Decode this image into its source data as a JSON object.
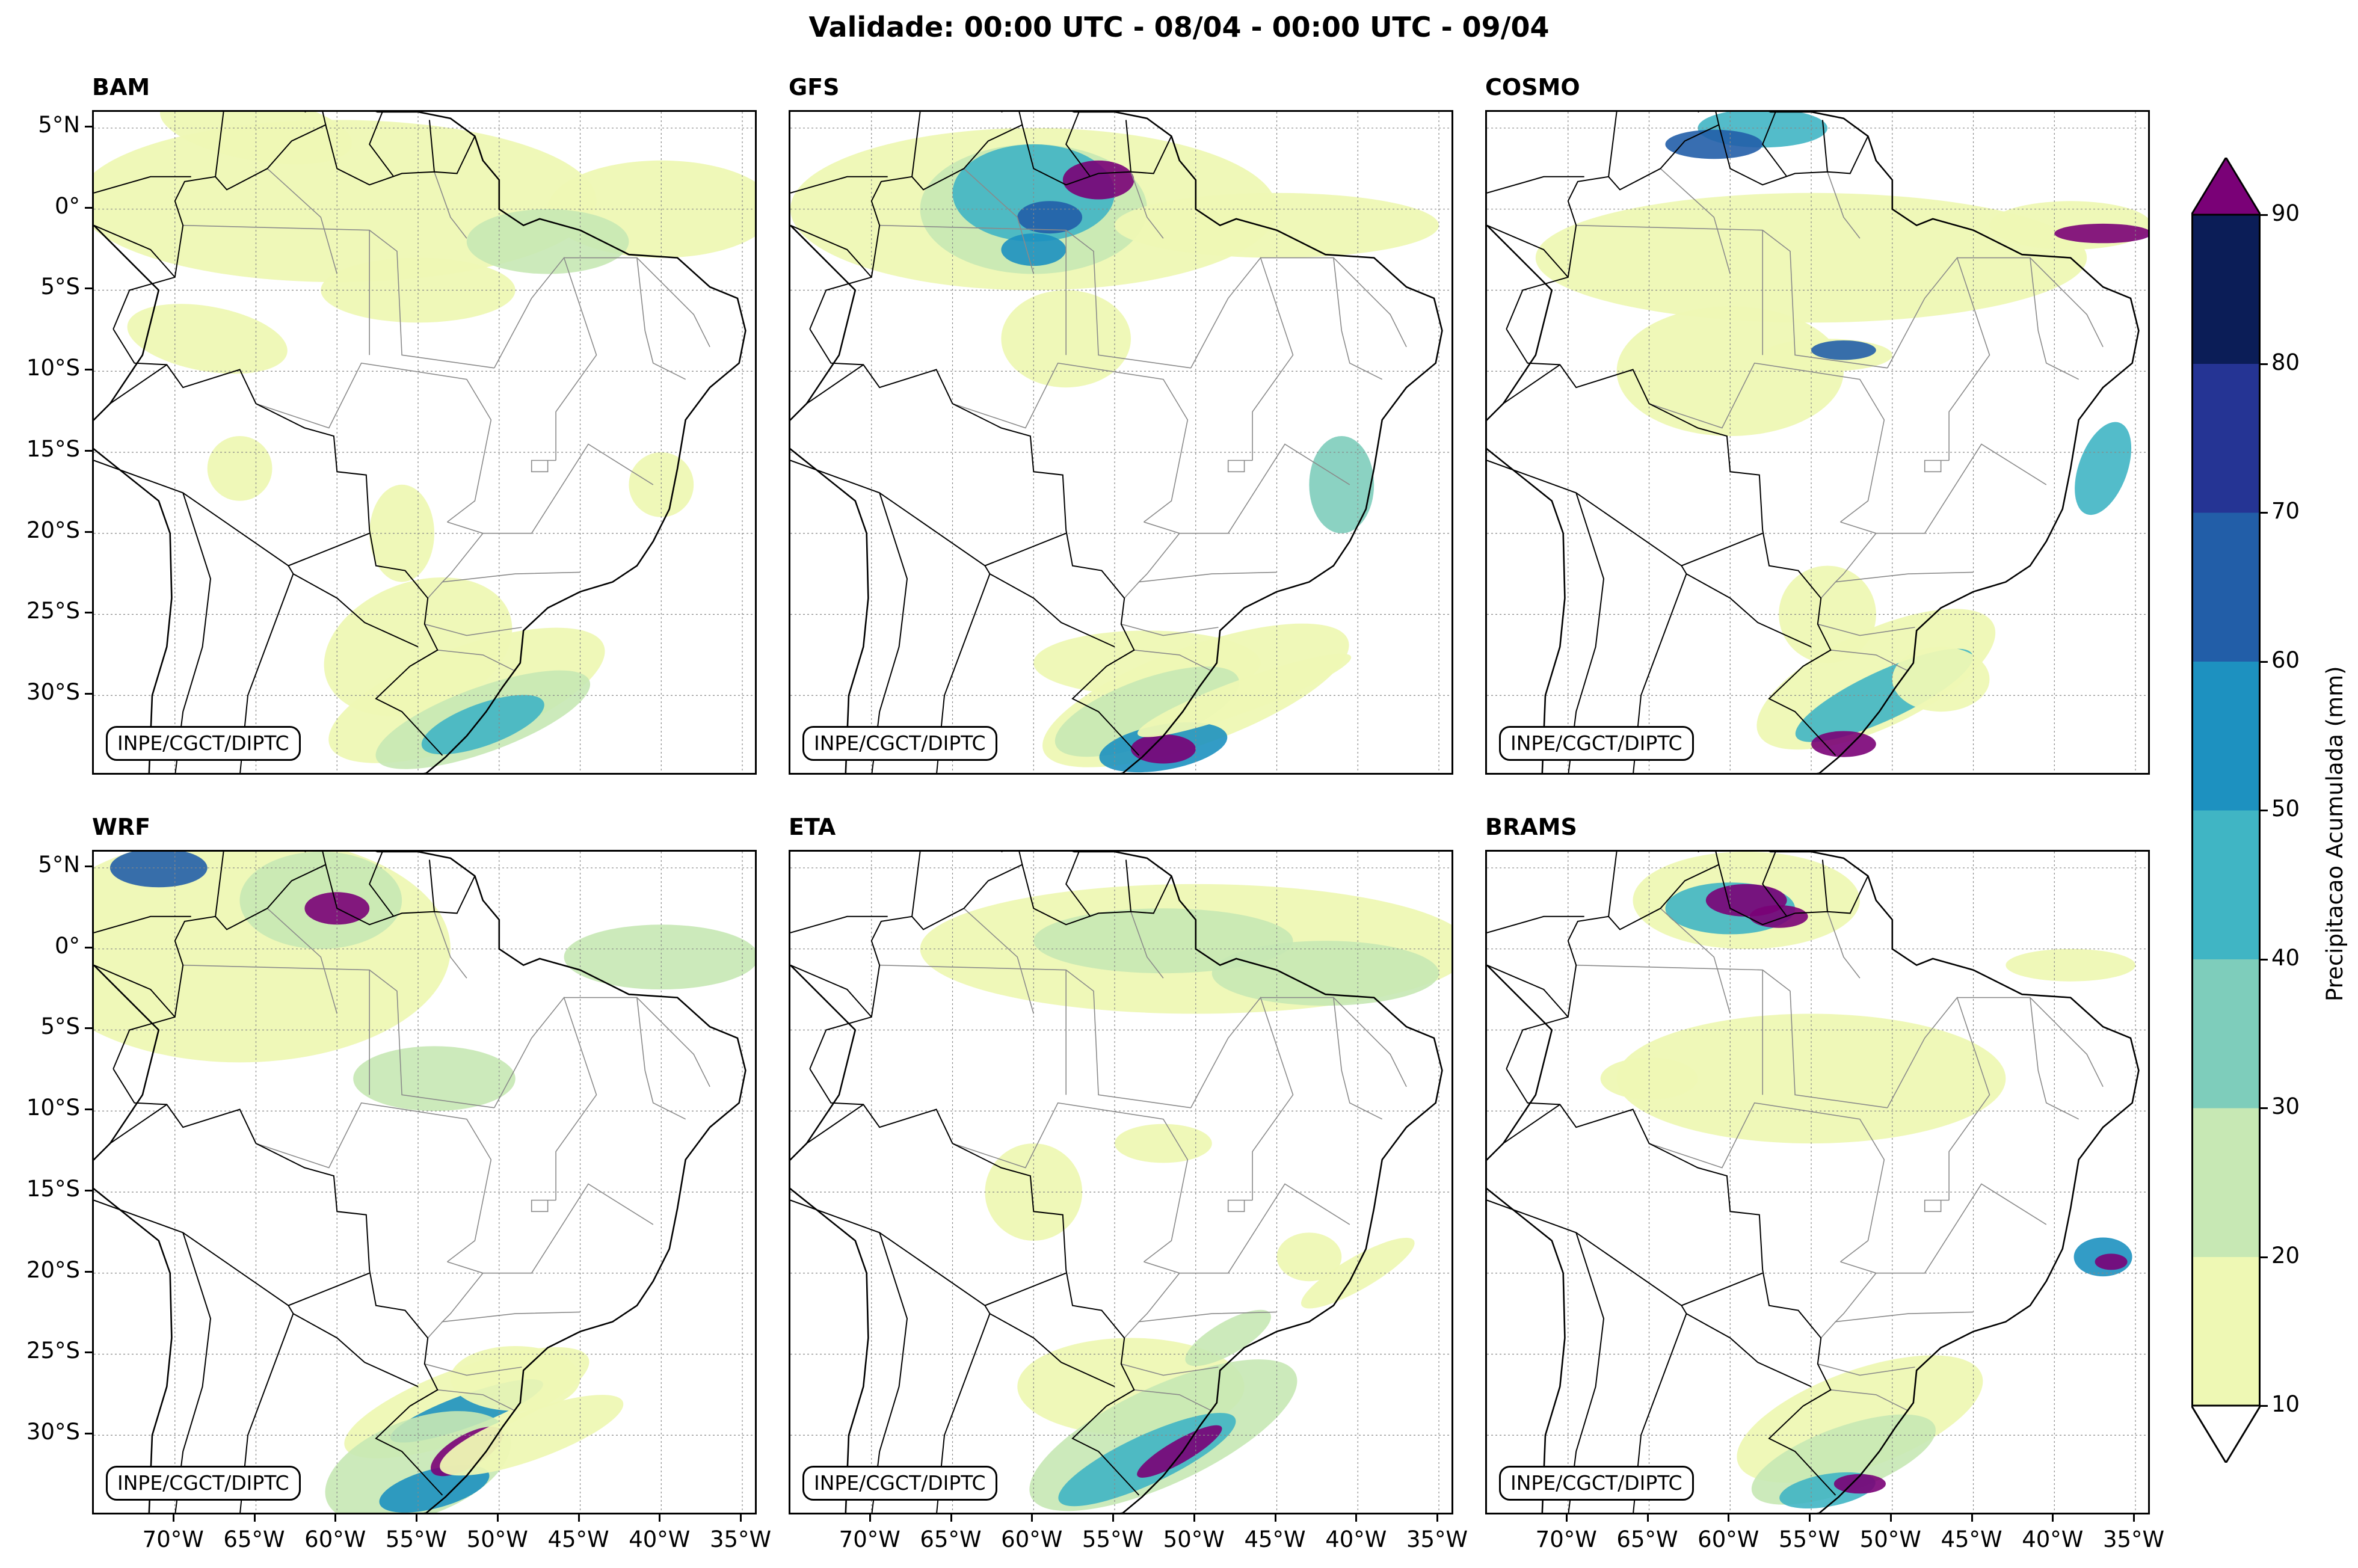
{
  "title": "Validade: 00:00 UTC - 08/04 - 00:00 UTC - 09/04",
  "credit": "INPE/CGCT/DIPTC",
  "panels": [
    {
      "name": "BAM"
    },
    {
      "name": "GFS"
    },
    {
      "name": "COSMO"
    },
    {
      "name": "WRF"
    },
    {
      "name": "ETA"
    },
    {
      "name": "BRAMS"
    }
  ],
  "lat_labels": [
    "5°N",
    "0°",
    "5°S",
    "10°S",
    "15°S",
    "20°S",
    "25°S",
    "30°S"
  ],
  "lon_labels": [
    "70°W",
    "65°W",
    "60°W",
    "55°W",
    "50°W",
    "45°W",
    "40°W",
    "35°W"
  ],
  "colorbar": {
    "title": "Precipitacao Acumulada (mm)",
    "ticks": [
      "10",
      "20",
      "30",
      "40",
      "50",
      "60",
      "70",
      "80",
      "90"
    ],
    "colors": [
      "#eef8b4",
      "#c7e8b4",
      "#7ecdbb",
      "#40b5c4",
      "#1d91c0",
      "#225ea8",
      "#253494",
      "#0b1d57"
    ],
    "over_color": "#7a0177",
    "under_color": "#ffffff"
  }
}
